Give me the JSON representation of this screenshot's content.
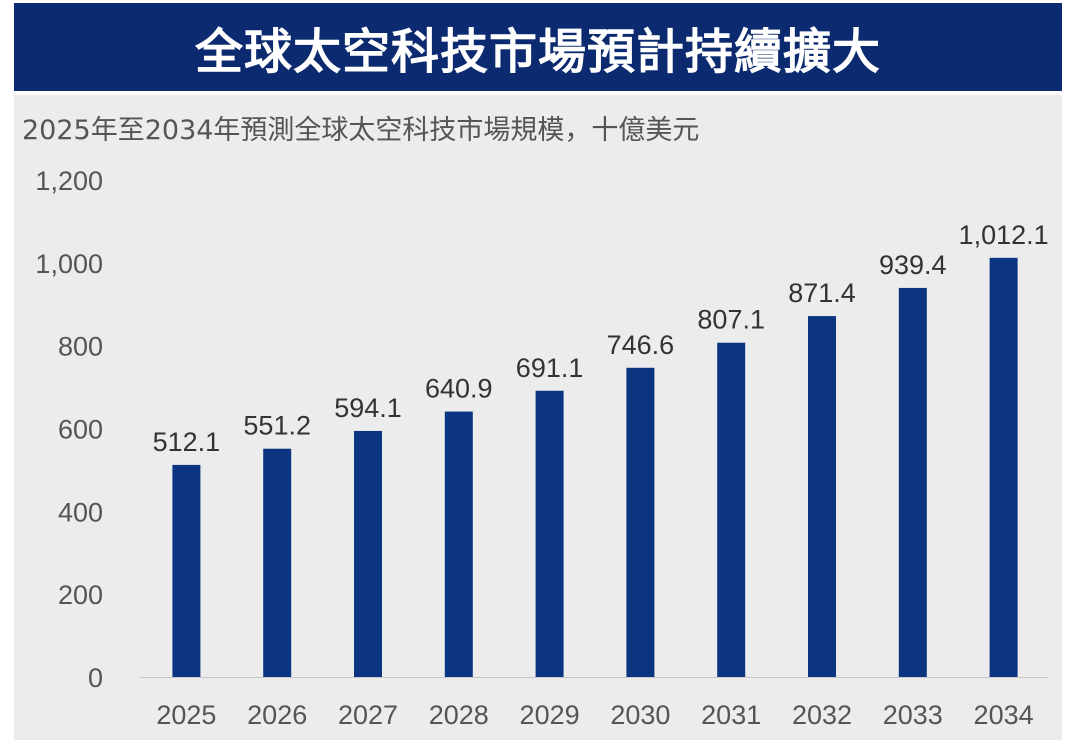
{
  "header": {
    "title": "全球太空科技市場預計持續擴大"
  },
  "colors": {
    "banner": "#0b2a6f",
    "bar": "#0b3580",
    "panel": "#ececec"
  },
  "chart_data": {
    "type": "bar",
    "title": "全球太空科技市場預計持續擴大",
    "subtitle": "2025年至2034年預測全球太空科技市場規模，十億美元",
    "xlabel": "",
    "ylabel": "十億美元",
    "categories": [
      "2025",
      "2026",
      "2027",
      "2028",
      "2029",
      "2030",
      "2031",
      "2032",
      "2033",
      "2034"
    ],
    "values": [
      512.1,
      551.2,
      594.1,
      640.9,
      691.1,
      746.6,
      807.1,
      871.4,
      939.4,
      1012.1
    ],
    "value_labels": [
      "512.1",
      "551.2",
      "594.1",
      "640.9",
      "691.1",
      "746.6",
      "807.1",
      "871.4",
      "939.4",
      "1,012.1"
    ],
    "ylim": [
      0,
      1200
    ],
    "yticks": [
      0,
      200,
      400,
      600,
      800,
      1000,
      1200
    ],
    "ytick_labels": [
      "0",
      "200",
      "400",
      "600",
      "800",
      "1,000",
      "1,200"
    ],
    "grid": false,
    "legend": "none"
  }
}
